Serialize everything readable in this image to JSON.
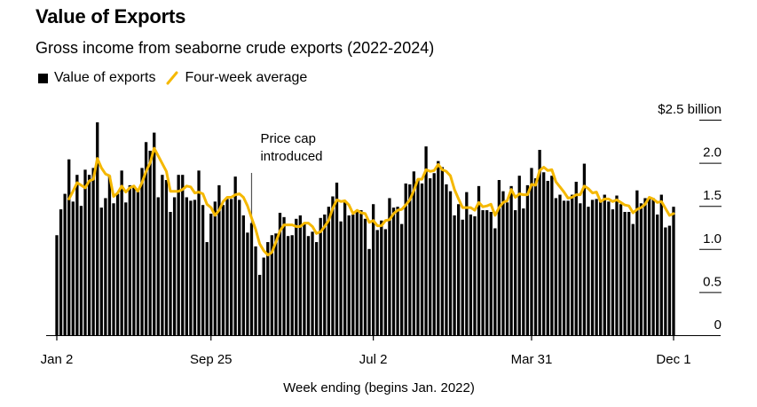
{
  "colors": {
    "bar": "#000000",
    "average_line": "#f5b800",
    "axis": "#000000",
    "annotation_line": "#555555"
  },
  "chart_data": {
    "type": "bar",
    "title": "Value of Exports",
    "subtitle": "Gross income from seaborne crude exports (2022-2024)",
    "xlabel": "Week ending (begins Jan. 2022)",
    "ylabel": "$ billion",
    "ylim": [
      0,
      2.5
    ],
    "y_ticks": [
      {
        "value": 2.5,
        "label": "$2.5 billion"
      },
      {
        "value": 2.0,
        "label": "2.0"
      },
      {
        "value": 1.5,
        "label": "1.5"
      },
      {
        "value": 1.0,
        "label": "1.0"
      },
      {
        "value": 0.5,
        "label": "0.5"
      },
      {
        "value": 0,
        "label": "0"
      }
    ],
    "x_ticks": [
      {
        "week_index": 0,
        "label": "Jan 2"
      },
      {
        "week_index": 38,
        "label": "Sep 25"
      },
      {
        "week_index": 78,
        "label": "Jul 2"
      },
      {
        "week_index": 117,
        "label": "Mar 31"
      },
      {
        "week_index": 152,
        "label": "Dec 1"
      }
    ],
    "legend": [
      {
        "name": "Value of exports",
        "type": "bar"
      },
      {
        "name": "Four-week average",
        "type": "line"
      }
    ],
    "legend_position": "top-left",
    "grid": false,
    "annotations": [
      {
        "week_index": 48,
        "lines": [
          "Price cap",
          "introduced"
        ]
      }
    ],
    "series": [
      {
        "name": "Value of exports",
        "values": [
          1.16,
          1.46,
          1.64,
          2.04,
          1.55,
          1.86,
          1.5,
          1.92,
          1.86,
          1.94,
          2.47,
          1.48,
          1.59,
          1.85,
          1.53,
          1.64,
          1.91,
          1.54,
          1.74,
          1.73,
          1.67,
          1.94,
          2.24,
          2.14,
          2.35,
          1.6,
          1.86,
          1.8,
          1.43,
          1.6,
          1.86,
          1.86,
          1.6,
          1.56,
          1.57,
          1.91,
          1.51,
          1.08,
          1.41,
          1.55,
          1.74,
          1.51,
          1.58,
          1.58,
          1.84,
          1.57,
          1.39,
          1.19,
          1.3,
          1.03,
          0.7,
          0.9,
          1.08,
          1.16,
          1.18,
          1.42,
          1.37,
          1.15,
          1.16,
          1.35,
          1.39,
          1.29,
          1.15,
          1.2,
          1.08,
          1.36,
          1.4,
          1.49,
          1.61,
          1.77,
          1.32,
          1.54,
          1.39,
          1.4,
          1.45,
          1.45,
          1.35,
          1.0,
          1.52,
          1.22,
          1.33,
          1.23,
          1.59,
          1.48,
          1.49,
          1.29,
          1.76,
          1.75,
          1.9,
          1.81,
          1.76,
          2.19,
          1.82,
          1.88,
          2.02,
          1.95,
          1.75,
          1.67,
          1.39,
          1.52,
          1.34,
          1.66,
          1.4,
          1.38,
          1.73,
          1.45,
          1.45,
          1.43,
          1.24,
          1.8,
          1.67,
          1.54,
          1.73,
          1.45,
          1.85,
          1.47,
          1.74,
          1.94,
          1.82,
          2.15,
          1.89,
          1.79,
          1.85,
          1.59,
          1.63,
          1.56,
          1.56,
          1.63,
          1.78,
          1.53,
          1.99,
          1.49,
          1.57,
          1.58,
          1.55,
          1.63,
          1.55,
          1.46,
          1.62,
          1.52,
          1.43,
          1.43,
          1.29,
          1.68,
          1.53,
          1.59,
          1.59,
          1.59,
          1.4,
          1.63,
          1.25,
          1.27,
          1.49
        ]
      },
      {
        "name": "Four-week average",
        "start_week_index": 3,
        "values": [
          1.58,
          1.67,
          1.77,
          1.74,
          1.71,
          1.79,
          1.81,
          2.05,
          1.94,
          1.87,
          1.85,
          1.61,
          1.65,
          1.73,
          1.66,
          1.71,
          1.73,
          1.67,
          1.77,
          1.9,
          2.0,
          2.17,
          2.08,
          1.99,
          1.9,
          1.67,
          1.67,
          1.67,
          1.69,
          1.73,
          1.72,
          1.65,
          1.66,
          1.64,
          1.52,
          1.48,
          1.39,
          1.45,
          1.55,
          1.6,
          1.6,
          1.63,
          1.64,
          1.6,
          1.5,
          1.36,
          1.23,
          1.06,
          0.98,
          0.93,
          0.96,
          1.08,
          1.21,
          1.28,
          1.28,
          1.28,
          1.26,
          1.26,
          1.3,
          1.3,
          1.26,
          1.18,
          1.2,
          1.26,
          1.33,
          1.47,
          1.57,
          1.55,
          1.56,
          1.51,
          1.41,
          1.45,
          1.42,
          1.41,
          1.31,
          1.33,
          1.27,
          1.27,
          1.33,
          1.34,
          1.41,
          1.45,
          1.46,
          1.51,
          1.57,
          1.68,
          1.81,
          1.81,
          1.92,
          1.9,
          1.91,
          1.98,
          1.92,
          1.9,
          1.85,
          1.69,
          1.58,
          1.48,
          1.48,
          1.48,
          1.45,
          1.54,
          1.49,
          1.5,
          1.52,
          1.39,
          1.48,
          1.54,
          1.56,
          1.69,
          1.6,
          1.64,
          1.63,
          1.63,
          1.75,
          1.74,
          1.91,
          1.95,
          1.91,
          1.92,
          1.78,
          1.72,
          1.66,
          1.59,
          1.6,
          1.63,
          1.63,
          1.73,
          1.7,
          1.65,
          1.66,
          1.55,
          1.58,
          1.58,
          1.55,
          1.57,
          1.54,
          1.51,
          1.5,
          1.42,
          1.46,
          1.48,
          1.52,
          1.6,
          1.58,
          1.54,
          1.55,
          1.47,
          1.39,
          1.41
        ]
      }
    ]
  }
}
